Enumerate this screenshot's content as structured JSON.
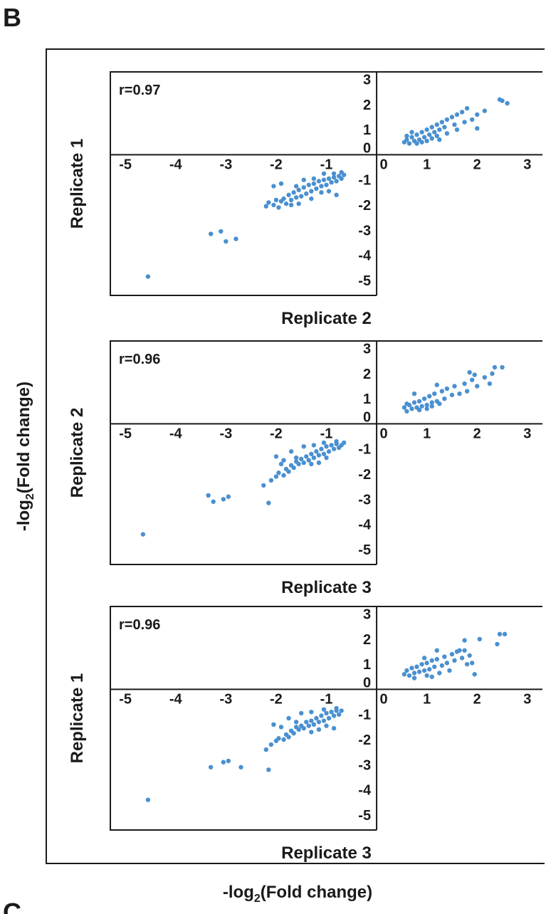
{
  "figure": {
    "panel_label": "B",
    "next_panel_label": "C",
    "outer_ylabel": "-log",
    "outer_ylabel_sub": "2",
    "outer_ylabel_rest": "(Fold change)",
    "outer_xlabel": "-log",
    "outer_xlabel_sub": "2",
    "outer_xlabel_rest": "(Fold change)"
  },
  "chart_data": [
    {
      "type": "scatter",
      "annotation": "r=0.97",
      "xlabel": "Replicate 2",
      "ylabel": "Replicate 1",
      "xlim": [
        -5.3,
        3.3
      ],
      "ylim": [
        -5.6,
        3.3
      ],
      "xticks": [
        -5,
        -4,
        -3,
        -2,
        -1,
        0,
        1,
        2,
        3
      ],
      "yticks": [
        3,
        2,
        1,
        0,
        -1,
        -2,
        -3,
        -4,
        -5
      ],
      "color": "#4a90d0",
      "points": [
        [
          -4.55,
          -4.85
        ],
        [
          -3.3,
          -3.15
        ],
        [
          -3.1,
          -3.05
        ],
        [
          -3.0,
          -3.45
        ],
        [
          -2.8,
          -3.35
        ],
        [
          -2.2,
          -2.05
        ],
        [
          -2.15,
          -1.9
        ],
        [
          -2.05,
          -2.0
        ],
        [
          -2.0,
          -1.8
        ],
        [
          -1.95,
          -2.1
        ],
        [
          -1.9,
          -1.85
        ],
        [
          -1.85,
          -1.75
        ],
        [
          -1.8,
          -1.95
        ],
        [
          -1.75,
          -1.6
        ],
        [
          -1.7,
          -1.8
        ],
        [
          -1.65,
          -1.5
        ],
        [
          -1.6,
          -1.7
        ],
        [
          -1.55,
          -1.4
        ],
        [
          -1.5,
          -1.65
        ],
        [
          -1.45,
          -1.3
        ],
        [
          -1.4,
          -1.55
        ],
        [
          -1.35,
          -1.2
        ],
        [
          -1.3,
          -1.45
        ],
        [
          -1.25,
          -1.15
        ],
        [
          -1.2,
          -1.35
        ],
        [
          -1.15,
          -1.05
        ],
        [
          -1.1,
          -1.25
        ],
        [
          -1.05,
          -1.0
        ],
        [
          -1.0,
          -1.2
        ],
        [
          -0.95,
          -0.95
        ],
        [
          -0.9,
          -1.1
        ],
        [
          -0.85,
          -0.9
        ],
        [
          -0.8,
          -1.05
        ],
        [
          -0.75,
          -0.85
        ],
        [
          -0.7,
          -0.95
        ],
        [
          -0.65,
          -0.8
        ],
        [
          -1.9,
          -1.15
        ],
        [
          -1.7,
          -2.0
        ],
        [
          -1.55,
          -1.95
        ],
        [
          -1.3,
          -1.75
        ],
        [
          -1.1,
          -1.5
        ],
        [
          -0.95,
          -1.45
        ],
        [
          -0.8,
          -1.6
        ],
        [
          -1.45,
          -1.0
        ],
        [
          -1.25,
          -0.95
        ],
        [
          -1.05,
          -0.75
        ],
        [
          -0.85,
          -0.75
        ],
        [
          -0.7,
          -0.7
        ],
        [
          -2.05,
          -1.25
        ],
        [
          -1.6,
          -1.25
        ],
        [
          0.55,
          0.5
        ],
        [
          0.6,
          0.6
        ],
        [
          0.65,
          0.45
        ],
        [
          0.7,
          0.7
        ],
        [
          0.75,
          0.55
        ],
        [
          0.8,
          0.8
        ],
        [
          0.85,
          0.6
        ],
        [
          0.9,
          0.9
        ],
        [
          0.95,
          0.7
        ],
        [
          1.0,
          1.0
        ],
        [
          1.05,
          0.8
        ],
        [
          1.1,
          1.1
        ],
        [
          1.15,
          0.9
        ],
        [
          1.2,
          1.2
        ],
        [
          1.25,
          1.0
        ],
        [
          1.3,
          1.3
        ],
        [
          1.35,
          1.1
        ],
        [
          1.4,
          1.4
        ],
        [
          1.5,
          1.5
        ],
        [
          1.55,
          1.2
        ],
        [
          1.6,
          1.6
        ],
        [
          1.7,
          1.7
        ],
        [
          1.75,
          1.3
        ],
        [
          1.8,
          1.85
        ],
        [
          1.9,
          1.4
        ],
        [
          2.0,
          1.6
        ],
        [
          2.15,
          1.75
        ],
        [
          2.45,
          2.2
        ],
        [
          2.5,
          2.15
        ],
        [
          2.6,
          2.05
        ],
        [
          2.0,
          1.05
        ],
        [
          1.25,
          0.6
        ],
        [
          0.7,
          0.9
        ],
        [
          0.9,
          0.5
        ],
        [
          1.1,
          0.65
        ],
        [
          0.6,
          0.75
        ],
        [
          0.8,
          0.45
        ],
        [
          1.0,
          0.55
        ],
        [
          1.2,
          0.75
        ],
        [
          1.4,
          0.85
        ],
        [
          1.6,
          1.0
        ]
      ]
    },
    {
      "type": "scatter",
      "annotation": "r=0.96",
      "xlabel": "Replicate 3",
      "ylabel": "Replicate 2",
      "xlim": [
        -5.3,
        3.3
      ],
      "ylim": [
        -5.6,
        3.3
      ],
      "xticks": [
        -5,
        -4,
        -3,
        -2,
        -1,
        0,
        1,
        2,
        3
      ],
      "yticks": [
        3,
        2,
        1,
        0,
        -1,
        -2,
        -3,
        -4,
        -5
      ],
      "color": "#4a90d0",
      "points": [
        [
          -4.65,
          -4.4
        ],
        [
          -3.35,
          -2.85
        ],
        [
          -3.25,
          -3.1
        ],
        [
          -3.05,
          -3.0
        ],
        [
          -2.95,
          -2.9
        ],
        [
          -2.15,
          -3.15
        ],
        [
          -2.25,
          -2.45
        ],
        [
          -2.1,
          -2.25
        ],
        [
          -2.0,
          -2.1
        ],
        [
          -1.95,
          -1.95
        ],
        [
          -1.85,
          -2.05
        ],
        [
          -1.8,
          -1.8
        ],
        [
          -1.75,
          -1.9
        ],
        [
          -1.7,
          -1.65
        ],
        [
          -1.65,
          -1.75
        ],
        [
          -1.6,
          -1.5
        ],
        [
          -1.55,
          -1.6
        ],
        [
          -1.5,
          -1.4
        ],
        [
          -1.45,
          -1.55
        ],
        [
          -1.4,
          -1.3
        ],
        [
          -1.35,
          -1.45
        ],
        [
          -1.3,
          -1.2
        ],
        [
          -1.25,
          -1.35
        ],
        [
          -1.2,
          -1.1
        ],
        [
          -1.15,
          -1.25
        ],
        [
          -1.1,
          -1.0
        ],
        [
          -1.05,
          -1.2
        ],
        [
          -1.0,
          -0.9
        ],
        [
          -0.95,
          -1.1
        ],
        [
          -0.9,
          -0.85
        ],
        [
          -0.85,
          -1.0
        ],
        [
          -0.8,
          -0.8
        ],
        [
          -0.75,
          -0.95
        ],
        [
          -0.7,
          -0.85
        ],
        [
          -0.65,
          -0.75
        ],
        [
          -1.85,
          -1.45
        ],
        [
          -1.6,
          -1.35
        ],
        [
          -1.9,
          -1.6
        ],
        [
          -1.3,
          -1.6
        ],
        [
          -1.15,
          -1.55
        ],
        [
          -1.0,
          -1.35
        ],
        [
          -2.0,
          -1.3
        ],
        [
          -1.7,
          -1.1
        ],
        [
          -1.45,
          -0.9
        ],
        [
          -1.25,
          -0.85
        ],
        [
          -0.8,
          -0.7
        ],
        [
          -1.05,
          -0.75
        ],
        [
          0.55,
          0.65
        ],
        [
          0.6,
          0.5
        ],
        [
          0.65,
          0.75
        ],
        [
          0.7,
          0.6
        ],
        [
          0.75,
          0.85
        ],
        [
          0.8,
          0.65
        ],
        [
          0.85,
          0.9
        ],
        [
          0.9,
          0.7
        ],
        [
          0.95,
          1.0
        ],
        [
          1.0,
          0.75
        ],
        [
          1.05,
          1.1
        ],
        [
          1.1,
          0.85
        ],
        [
          1.15,
          1.2
        ],
        [
          1.2,
          0.9
        ],
        [
          1.3,
          1.3
        ],
        [
          1.35,
          1.0
        ],
        [
          1.4,
          1.4
        ],
        [
          1.5,
          1.15
        ],
        [
          1.55,
          1.5
        ],
        [
          1.65,
          1.2
        ],
        [
          1.75,
          1.6
        ],
        [
          1.8,
          1.3
        ],
        [
          1.9,
          1.75
        ],
        [
          2.0,
          1.5
        ],
        [
          1.85,
          2.05
        ],
        [
          2.15,
          1.85
        ],
        [
          2.25,
          1.6
        ],
        [
          2.35,
          2.25
        ],
        [
          2.5,
          2.25
        ],
        [
          2.3,
          2.0
        ],
        [
          1.95,
          1.95
        ],
        [
          1.2,
          1.55
        ],
        [
          0.75,
          1.2
        ],
        [
          0.6,
          0.8
        ],
        [
          0.85,
          0.55
        ],
        [
          1.0,
          0.6
        ],
        [
          1.1,
          0.7
        ],
        [
          1.25,
          0.8
        ]
      ]
    },
    {
      "type": "scatter",
      "annotation": "r=0.96",
      "xlabel": "Replicate 3",
      "ylabel": "Replicate 1",
      "xlim": [
        -5.3,
        3.3
      ],
      "ylim": [
        -5.6,
        3.3
      ],
      "xticks": [
        -5,
        -4,
        -3,
        -2,
        -1,
        0,
        1,
        2,
        3
      ],
      "yticks": [
        3,
        2,
        1,
        0,
        -1,
        -2,
        -3,
        -4,
        -5
      ],
      "color": "#4a90d0",
      "points": [
        [
          -4.55,
          -4.4
        ],
        [
          -3.3,
          -3.1
        ],
        [
          -3.05,
          -2.9
        ],
        [
          -2.95,
          -2.85
        ],
        [
          -2.7,
          -3.1
        ],
        [
          -2.15,
          -3.2
        ],
        [
          -2.2,
          -2.4
        ],
        [
          -2.1,
          -2.2
        ],
        [
          -2.0,
          -2.05
        ],
        [
          -1.95,
          -1.95
        ],
        [
          -1.85,
          -2.0
        ],
        [
          -1.8,
          -1.8
        ],
        [
          -1.75,
          -1.9
        ],
        [
          -1.7,
          -1.65
        ],
        [
          -1.65,
          -1.75
        ],
        [
          -1.6,
          -1.5
        ],
        [
          -1.55,
          -1.6
        ],
        [
          -1.5,
          -1.45
        ],
        [
          -1.45,
          -1.55
        ],
        [
          -1.4,
          -1.3
        ],
        [
          -1.35,
          -1.45
        ],
        [
          -1.3,
          -1.25
        ],
        [
          -1.25,
          -1.4
        ],
        [
          -1.2,
          -1.15
        ],
        [
          -1.15,
          -1.3
        ],
        [
          -1.1,
          -1.05
        ],
        [
          -1.05,
          -1.25
        ],
        [
          -1.0,
          -0.95
        ],
        [
          -0.95,
          -1.15
        ],
        [
          -0.9,
          -0.9
        ],
        [
          -0.85,
          -1.05
        ],
        [
          -0.8,
          -0.85
        ],
        [
          -0.75,
          -1.0
        ],
        [
          -0.7,
          -0.85
        ],
        [
          -1.9,
          -1.5
        ],
        [
          -1.6,
          -1.3
        ],
        [
          -1.3,
          -1.7
        ],
        [
          -1.15,
          -1.6
        ],
        [
          -1.0,
          -1.45
        ],
        [
          -0.85,
          -1.55
        ],
        [
          -2.05,
          -1.4
        ],
        [
          -1.75,
          -1.15
        ],
        [
          -1.5,
          -0.95
        ],
        [
          -1.3,
          -0.9
        ],
        [
          -1.05,
          -0.8
        ],
        [
          -0.8,
          -0.75
        ],
        [
          0.55,
          0.6
        ],
        [
          0.6,
          0.75
        ],
        [
          0.65,
          0.55
        ],
        [
          0.7,
          0.85
        ],
        [
          0.75,
          0.65
        ],
        [
          0.8,
          0.9
        ],
        [
          0.85,
          0.7
        ],
        [
          0.9,
          1.0
        ],
        [
          0.95,
          0.75
        ],
        [
          1.0,
          1.05
        ],
        [
          1.05,
          0.8
        ],
        [
          1.1,
          1.15
        ],
        [
          1.15,
          0.9
        ],
        [
          1.2,
          1.2
        ],
        [
          1.3,
          0.95
        ],
        [
          1.35,
          1.3
        ],
        [
          1.4,
          1.05
        ],
        [
          1.5,
          1.4
        ],
        [
          1.55,
          1.15
        ],
        [
          1.6,
          1.5
        ],
        [
          1.7,
          1.25
        ],
        [
          1.75,
          1.55
        ],
        [
          1.8,
          1.0
        ],
        [
          1.85,
          1.35
        ],
        [
          1.95,
          0.6
        ],
        [
          1.9,
          1.05
        ],
        [
          1.75,
          1.95
        ],
        [
          2.05,
          2.0
        ],
        [
          2.45,
          2.2
        ],
        [
          2.55,
          2.2
        ],
        [
          2.4,
          1.8
        ],
        [
          1.65,
          1.55
        ],
        [
          1.2,
          1.55
        ],
        [
          0.95,
          1.25
        ],
        [
          0.75,
          0.45
        ],
        [
          1.0,
          0.55
        ],
        [
          1.25,
          0.65
        ],
        [
          1.45,
          0.75
        ],
        [
          1.1,
          0.5
        ]
      ]
    }
  ]
}
